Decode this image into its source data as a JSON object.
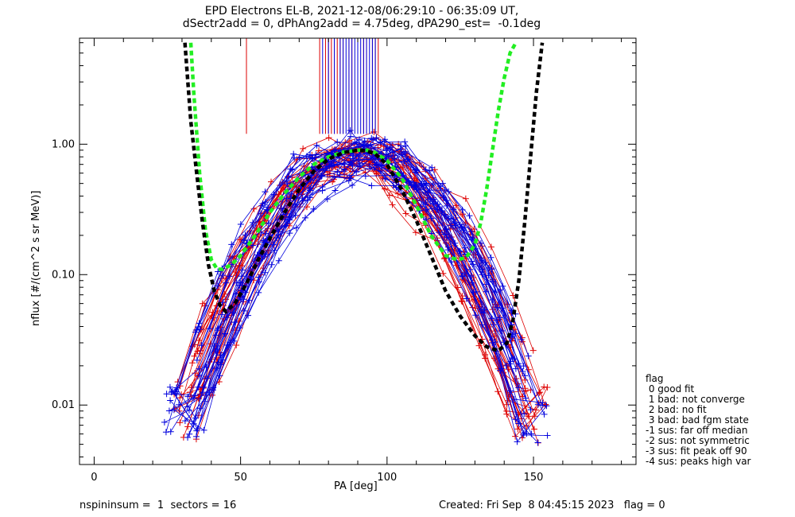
{
  "chart_data": {
    "type": "scatter",
    "title_line1": "EPD Electrons EL-B, 2021-12-08/06:29:10 - 06:35:09 UT,",
    "title_line2": "dSectr2add = 0, dPhAng2add = 4.75deg, dPA290_est=  -0.1deg",
    "xlabel": "PA [deg]",
    "ylabel": "nflux [#/(cm^2 s sr MeV)]",
    "xlim": [
      -5,
      185
    ],
    "ylim": [
      0.0035,
      6.5
    ],
    "yscale": "log",
    "x_ticks": [
      0,
      50,
      100,
      150
    ],
    "y_ticks": [
      {
        "value": 0.01,
        "label": "0.01"
      },
      {
        "value": 0.1,
        "label": "0.10"
      },
      {
        "value": 1.0,
        "label": "1.00"
      }
    ],
    "series_colors": {
      "red": "#dd0000",
      "blue": "#0000dd",
      "black_fit": "#000000",
      "green_fit": "#22ee22"
    },
    "black_fit_curve": {
      "x": [
        31,
        33,
        35,
        37,
        39,
        41,
        43,
        45,
        48,
        52,
        56,
        60,
        65,
        70,
        75,
        80,
        85,
        90,
        93,
        96,
        100,
        105,
        110,
        115,
        120,
        125,
        130,
        134,
        138,
        141,
        143,
        145,
        147,
        149,
        151,
        153
      ],
      "y": [
        6.0,
        1.5,
        0.6,
        0.25,
        0.12,
        0.075,
        0.058,
        0.052,
        0.06,
        0.085,
        0.13,
        0.19,
        0.3,
        0.45,
        0.62,
        0.77,
        0.86,
        0.9,
        0.89,
        0.84,
        0.7,
        0.45,
        0.26,
        0.14,
        0.075,
        0.048,
        0.034,
        0.028,
        0.026,
        0.03,
        0.045,
        0.09,
        0.25,
        0.8,
        2.5,
        6.0
      ]
    },
    "green_fit_curve": {
      "x": [
        33,
        34,
        36,
        38,
        40,
        42,
        44,
        47,
        50,
        55,
        60,
        65,
        70,
        75,
        80,
        85,
        90,
        93,
        96,
        100,
        105,
        110,
        115,
        120,
        124,
        127,
        130,
        132,
        134,
        136,
        138,
        140,
        142,
        144
      ],
      "y": [
        6.0,
        2.5,
        0.6,
        0.22,
        0.13,
        0.11,
        0.11,
        0.12,
        0.14,
        0.2,
        0.3,
        0.42,
        0.56,
        0.7,
        0.8,
        0.87,
        0.9,
        0.9,
        0.86,
        0.75,
        0.55,
        0.34,
        0.2,
        0.14,
        0.13,
        0.135,
        0.17,
        0.25,
        0.45,
        0.9,
        1.8,
        3.2,
        5.0,
        6.0
      ]
    },
    "flag_lines": {
      "red_x": [
        52,
        77,
        79,
        80,
        81,
        82,
        83,
        84,
        85,
        87,
        88,
        90,
        92,
        93,
        95,
        96,
        97
      ],
      "blue_x": [
        78,
        80,
        82,
        84,
        85,
        86,
        87,
        88,
        89,
        90,
        91,
        92,
        93,
        94,
        95,
        96
      ]
    }
  },
  "legend": {
    "title": "flag",
    "items": [
      " 0 good fit",
      " 1 bad: not converge",
      " 2 bad: no fit",
      " 3 bad: bad fgm state",
      "-1 sus: far off median",
      "-2 sus: not symmetric",
      "-3 sus: fit peak off 90",
      "-4 sus: peaks high var"
    ]
  },
  "footer": {
    "left": "nspininsum =  1  sectors = 16",
    "right": "Created: Fri Sep  8 04:45:15 2023   flag = 0"
  }
}
